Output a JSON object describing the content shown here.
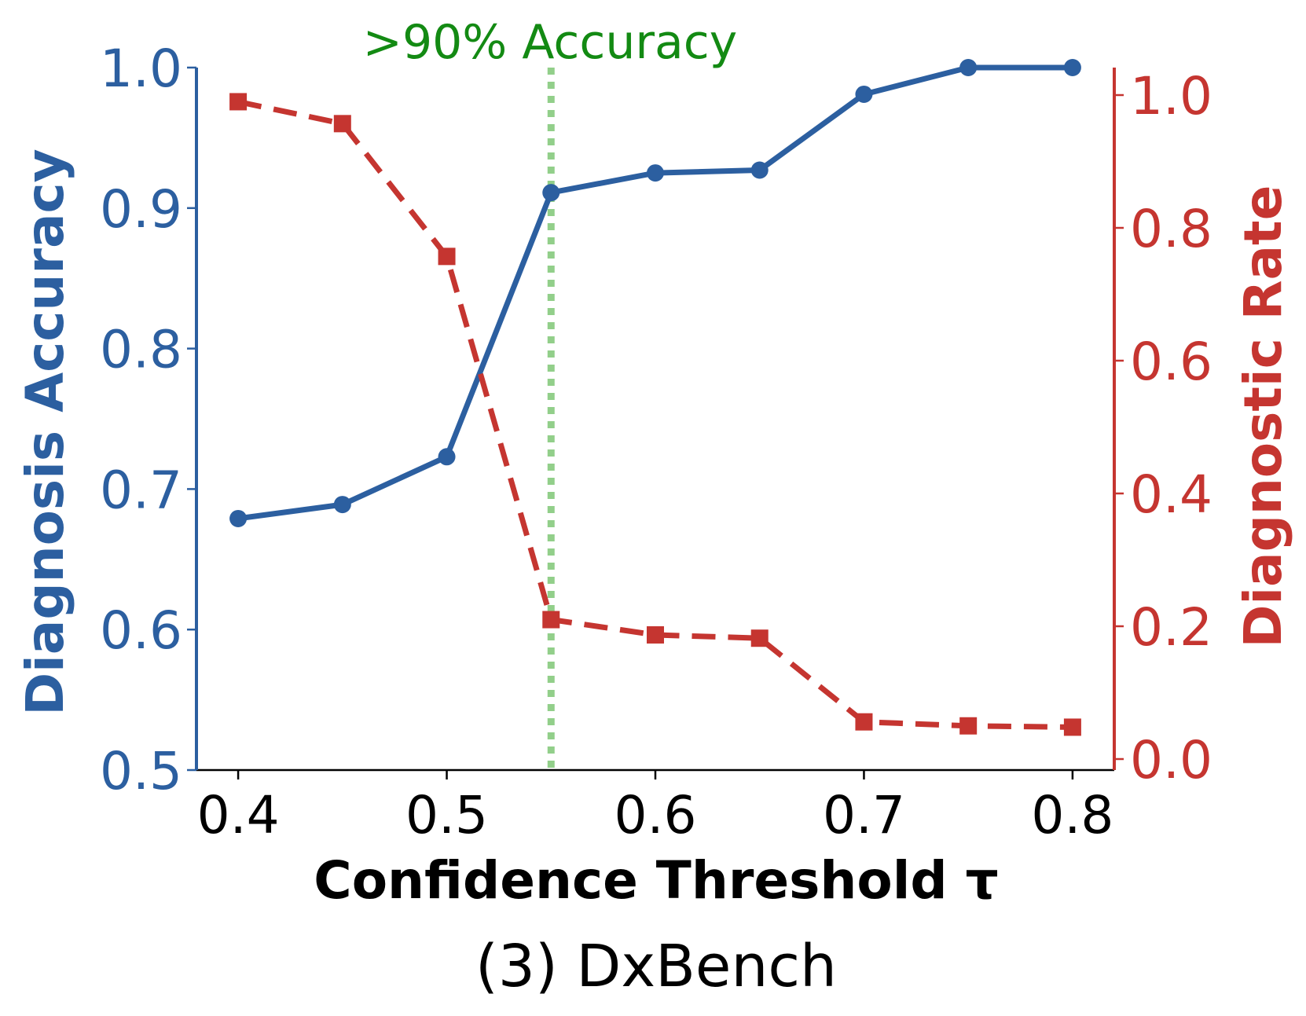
{
  "chart_data": {
    "type": "line",
    "title": "(3) DxBench",
    "annotation": ">90% Accuracy",
    "annotation_x": 0.55,
    "xlabel": "Confidence Threshold τ",
    "ylabel_left": "Diagnosis Accuracy",
    "ylabel_right": "Diagnostic Rate",
    "x": [
      0.4,
      0.45,
      0.5,
      0.55,
      0.6,
      0.65,
      0.7,
      0.75,
      0.8
    ],
    "xlim": [
      0.38,
      0.82
    ],
    "x_ticks": [
      0.4,
      0.5,
      0.6,
      0.7,
      0.8
    ],
    "x_tick_labels": [
      "0.4",
      "0.5",
      "0.6",
      "0.7",
      "0.8"
    ],
    "ylim_left": [
      0.5,
      1.0
    ],
    "y_ticks_left": [
      0.5,
      0.6,
      0.7,
      0.8,
      0.9,
      1.0
    ],
    "y_tick_labels_left": [
      "0.5",
      "0.6",
      "0.7",
      "0.8",
      "0.9",
      "1.0"
    ],
    "ylim_right": [
      0.0,
      1.0
    ],
    "y_ticks_right": [
      0.0,
      0.2,
      0.4,
      0.6,
      0.8,
      1.0
    ],
    "y_tick_labels_right": [
      "0.0",
      "0.2",
      "0.4",
      "0.6",
      "0.8",
      "1.0"
    ],
    "series": [
      {
        "axis": "left",
        "marker": "circle",
        "line_style": "solid",
        "color": "#2c5fa0",
        "values": [
          0.679,
          0.689,
          0.723,
          0.911,
          0.925,
          0.927,
          0.981,
          1.0,
          1.0
        ]
      },
      {
        "axis": "right",
        "marker": "square",
        "line_style": "dashed",
        "color": "#c53530",
        "values": [
          0.99,
          0.957,
          0.757,
          0.21,
          0.187,
          0.182,
          0.056,
          0.05,
          0.048
        ]
      }
    ],
    "colors": {
      "left_axis": "#2c5fa0",
      "right_axis": "#c53530",
      "annotation": "#138a13",
      "threshold_line": "#92cf8a",
      "text": "#000000"
    }
  }
}
